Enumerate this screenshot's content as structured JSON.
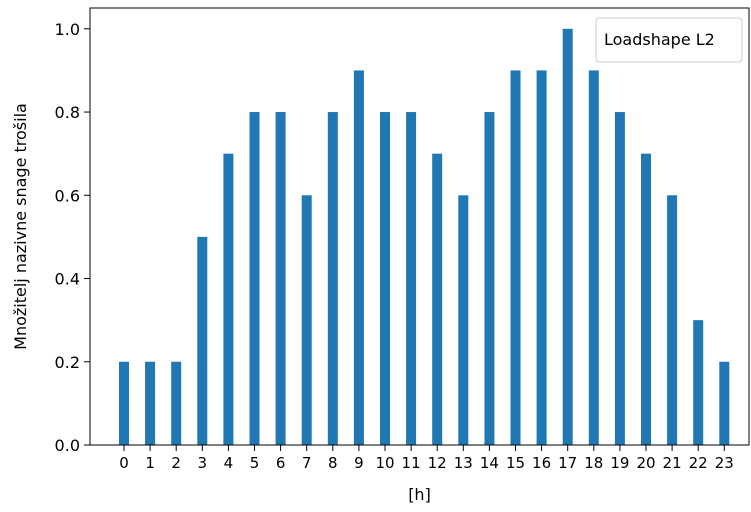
{
  "chart_data": {
    "type": "bar",
    "title": "",
    "xlabel": "[h]",
    "ylabel": "Množitelj nazivne snage trošila",
    "categories": [
      "0",
      "1",
      "2",
      "3",
      "4",
      "5",
      "6",
      "7",
      "8",
      "9",
      "10",
      "11",
      "12",
      "13",
      "14",
      "15",
      "16",
      "17",
      "18",
      "19",
      "20",
      "21",
      "22",
      "23"
    ],
    "series": [
      {
        "name": "Loadshape L2",
        "color": "#1f77b4",
        "values": [
          0.2,
          0.2,
          0.2,
          0.5,
          0.7,
          0.8,
          0.8,
          0.6,
          0.8,
          0.9,
          0.8,
          0.8,
          0.7,
          0.6,
          0.8,
          0.9,
          0.9,
          1.0,
          0.9,
          0.8,
          0.7,
          0.6,
          0.3,
          0.2
        ]
      }
    ],
    "ylim": [
      0,
      1.05
    ],
    "yticks": [
      "0.0",
      "0.2",
      "0.4",
      "0.6",
      "0.8",
      "1.0"
    ],
    "grid": false,
    "legend_position": "top-right"
  }
}
